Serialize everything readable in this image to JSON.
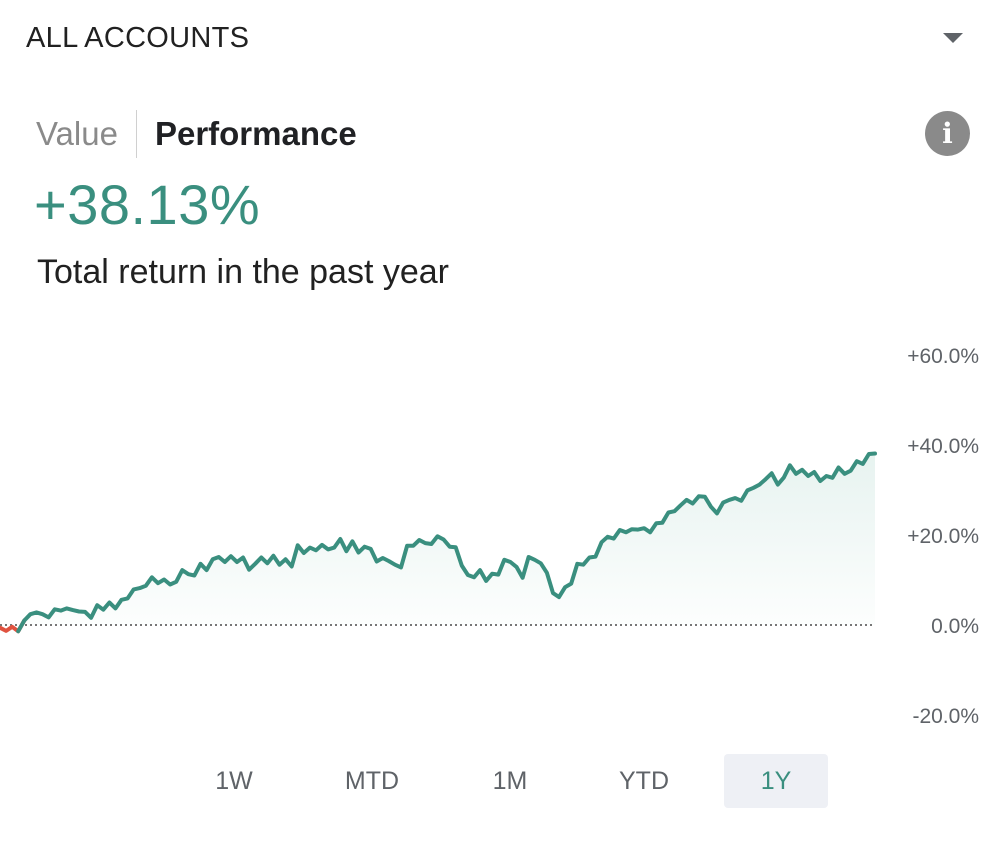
{
  "header": {
    "account_label": "ALL ACCOUNTS",
    "dropdown_icon": "chevron-down-icon"
  },
  "toggle": {
    "value_label": "Value",
    "performance_label": "Performance",
    "active": "Performance"
  },
  "info_icon": {
    "name": "info-icon",
    "glyph": "i"
  },
  "summary": {
    "return_value": "+38.13%",
    "caption": "Total return in the past year"
  },
  "colors": {
    "positive": "#3a8f7f",
    "negative": "#e0523f",
    "fill": "#e7f3f0",
    "baseline": "#777777"
  },
  "chart_data": {
    "type": "area",
    "y_tick_labels": [
      "+60.0%",
      "+40.0%",
      "+20.0%",
      "0.0%",
      "-20.0%"
    ],
    "y_ticks": [
      60,
      40,
      20,
      0,
      -20
    ],
    "ylim": [
      -20,
      60
    ],
    "baseline": 0,
    "grid": false,
    "legend": "none",
    "series": [
      {
        "values": [
          -0.6,
          -1.3,
          -0.4,
          -1.4,
          1.0,
          2.4,
          2.8,
          2.4,
          1.7,
          3.5,
          3.2,
          3.7,
          3.3,
          3.0,
          2.9,
          1.6,
          4.4,
          3.4,
          5.0,
          3.7,
          5.6,
          5.9,
          7.9,
          8.2,
          8.7,
          10.6,
          9.3,
          10.1,
          9.0,
          9.6,
          12.2,
          11.3,
          11.0,
          13.6,
          12.2,
          14.6,
          15.1,
          14.0,
          15.3,
          14.0,
          15.0,
          12.3,
          13.6,
          15.0,
          13.7,
          15.4,
          13.4,
          14.6,
          13.0,
          17.7,
          16.0,
          17.2,
          16.6,
          17.8,
          16.8,
          17.2,
          19.1,
          16.4,
          18.6,
          16.1,
          17.4,
          16.9,
          14.1,
          14.9,
          14.2,
          13.4,
          12.8,
          17.6,
          17.6,
          18.9,
          18.2,
          18.0,
          19.7,
          19.0,
          17.4,
          17.3,
          13.2,
          11.1,
          10.6,
          12.2,
          9.8,
          11.4,
          11.2,
          14.5,
          14.0,
          12.9,
          10.5,
          15.1,
          14.5,
          13.7,
          11.6,
          7.1,
          6.2,
          8.4,
          9.2,
          13.6,
          13.4,
          15.0,
          15.2,
          18.4,
          19.6,
          19.2,
          21.1,
          20.6,
          21.3,
          21.2,
          21.5,
          20.6,
          22.6,
          22.7,
          25.0,
          25.3,
          26.6,
          27.8,
          27.0,
          28.6,
          28.5,
          26.3,
          24.8,
          27.2,
          27.8,
          28.2,
          27.6,
          29.9,
          30.5,
          31.2,
          32.4,
          33.7,
          31.2,
          32.8,
          35.5,
          33.6,
          34.5,
          33.1,
          34.0,
          32.0,
          33.1,
          32.7,
          35.0,
          33.6,
          34.3,
          36.4,
          35.8,
          38.0,
          38.1
        ]
      }
    ]
  },
  "range_tabs": {
    "items": [
      "1W",
      "MTD",
      "1M",
      "YTD",
      "1Y"
    ],
    "active": "1Y"
  }
}
